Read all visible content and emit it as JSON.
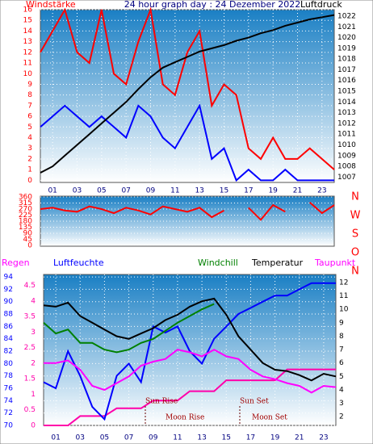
{
  "chart_data": [
    {
      "type": "line",
      "title": "24 hour graph day : 24 Dezember 2022",
      "y_label": "Windstärke",
      "y2_label": "Luftdruck",
      "x": [
        0,
        1,
        2,
        3,
        4,
        5,
        6,
        7,
        8,
        9,
        10,
        11,
        12,
        13,
        14,
        15,
        16,
        17,
        18,
        19,
        20,
        21,
        22,
        23,
        24
      ],
      "xlim": [
        0,
        24
      ],
      "xticks": [
        {
          "value": 1,
          "label": "01"
        },
        {
          "value": 3,
          "label": "03"
        },
        {
          "value": 5,
          "label": "05"
        },
        {
          "value": 7,
          "label": "07"
        },
        {
          "value": 9,
          "label": "09"
        },
        {
          "value": 11,
          "label": "11"
        },
        {
          "value": 13,
          "label": "13"
        },
        {
          "value": 15,
          "label": "15"
        },
        {
          "value": 17,
          "label": "17"
        },
        {
          "value": 19,
          "label": "19"
        },
        {
          "value": 21,
          "label": "21"
        },
        {
          "value": 23,
          "label": "23"
        }
      ],
      "ylim": [
        -0.2,
        16
      ],
      "yticks": [
        0,
        1,
        2,
        3,
        4,
        5,
        6,
        7,
        8,
        9,
        10,
        11,
        12,
        13,
        14,
        15,
        16
      ],
      "y2lim": [
        1006.5,
        1022.6
      ],
      "y2ticks": [
        1007,
        1008,
        1009,
        1010,
        1011,
        1012,
        1013,
        1014,
        1015,
        1016,
        1017,
        1018,
        1019,
        1020,
        1021,
        1022
      ],
      "series": [
        {
          "color": "#ff0000",
          "values": [
            12,
            14,
            16,
            12,
            11,
            16,
            10,
            9,
            13,
            16,
            9,
            8,
            12,
            14,
            7,
            9,
            8,
            3,
            2,
            4,
            2,
            2,
            3,
            2,
            1
          ]
        },
        {
          "color": "#0000ff",
          "values": [
            5,
            6,
            7,
            6,
            5,
            6,
            5,
            4,
            7,
            6,
            4,
            3,
            5,
            7,
            2,
            3,
            0,
            1,
            0,
            0,
            1,
            0,
            0,
            0,
            0
          ]
        },
        {
          "color": "#000000",
          "axis": "y2",
          "values": [
            1007.4,
            1008,
            1009,
            1010,
            1011,
            1012,
            1013,
            1014,
            1015.2,
            1016.3,
            1017.2,
            1017.7,
            1018.2,
            1018.7,
            1019,
            1019.3,
            1019.7,
            1020,
            1020.4,
            1020.7,
            1021.1,
            1021.4,
            1021.7,
            1021.9,
            1022.1
          ]
        }
      ]
    },
    {
      "type": "line",
      "x": [
        0,
        1,
        2,
        3,
        4,
        5,
        6,
        7,
        8,
        9,
        10,
        11,
        12,
        13,
        14,
        15,
        16,
        17,
        18,
        19,
        20,
        21,
        22,
        23,
        24
      ],
      "xlim": [
        0,
        24
      ],
      "ylim": [
        -6,
        366
      ],
      "yticks": [
        0,
        45,
        90,
        135,
        180,
        225,
        270,
        315,
        360
      ],
      "y2lim": [
        0,
        360
      ],
      "y2ticks": [
        {
          "value": 360,
          "label": "N"
        },
        {
          "value": 270,
          "label": "W"
        },
        {
          "value": 180,
          "label": "S"
        },
        {
          "value": 90,
          "label": "O"
        },
        {
          "value": 0,
          "label": "N"
        }
      ],
      "series": [
        {
          "color": "#ff0000",
          "values": [
            270,
            280,
            260,
            250,
            290,
            270,
            240,
            280,
            260,
            230,
            290,
            270,
            250,
            280,
            210,
            260,
            null,
            280,
            190,
            300,
            250,
            null,
            320,
            240,
            300
          ]
        }
      ]
    },
    {
      "type": "line",
      "x": [
        0,
        1,
        2,
        3,
        4,
        5,
        6,
        7,
        8,
        9,
        10,
        11,
        12,
        13,
        14,
        15,
        16,
        17,
        18,
        19,
        20,
        21,
        22,
        23,
        24
      ],
      "xlim": [
        0,
        24
      ],
      "xticks": [
        {
          "value": 1,
          "label": "01"
        },
        {
          "value": 3,
          "label": "03"
        },
        {
          "value": 5,
          "label": "05"
        },
        {
          "value": 7,
          "label": "07"
        },
        {
          "value": 9,
          "label": "09"
        },
        {
          "value": 11,
          "label": "11"
        },
        {
          "value": 13,
          "label": "13"
        },
        {
          "value": 15,
          "label": "15"
        },
        {
          "value": 17,
          "label": "17"
        },
        {
          "value": 19,
          "label": "19"
        },
        {
          "value": 21,
          "label": "21"
        },
        {
          "value": 23,
          "label": "23"
        }
      ],
      "ylim": [
        70,
        94.4
      ],
      "yticks": [
        70,
        72,
        74,
        76,
        78,
        80,
        82,
        84,
        86,
        88,
        90,
        92,
        94
      ],
      "y2lim": [
        1.35,
        12.6
      ],
      "y2ticks": [
        2,
        3,
        4,
        5,
        6,
        7,
        8,
        9,
        10,
        11,
        12
      ],
      "y3lim": [
        0,
        4.85
      ],
      "y3ticks": [
        0,
        0.5,
        1,
        1.5,
        2,
        2.5,
        3,
        3.5,
        4,
        4.5
      ],
      "annotations": [
        "Sun Rise",
        "Moon Rise",
        "Sun Set",
        "Moon Set"
      ],
      "series": [
        {
          "name": "Regen",
          "color": "#ff00aa",
          "axis": "y3",
          "values": [
            0,
            0,
            0,
            0.3,
            0.3,
            0.3,
            0.55,
            0.55,
            0.55,
            0.8,
            0.8,
            0.8,
            1.1,
            1.1,
            1.1,
            1.45,
            1.45,
            1.45,
            1.45,
            1.45,
            1.8,
            1.8,
            1.8,
            1.8,
            1.8
          ]
        },
        {
          "name": "Luftfeuchte",
          "color": "#0000ff",
          "values": [
            77,
            76,
            82,
            78,
            73,
            71,
            78,
            80,
            77,
            86,
            85,
            86,
            82,
            80,
            84,
            86,
            88,
            89,
            90,
            91,
            91,
            92,
            93,
            93,
            93
          ]
        },
        {
          "name": "Windchill",
          "color": "#008000",
          "axis": "y2",
          "values": [
            9.0,
            8.2,
            8.5,
            7.5,
            7.5,
            7.0,
            6.8,
            7.0,
            7.5,
            7.8,
            8.4,
            9.0,
            9.5,
            10.0,
            10.4,
            null,
            null,
            null,
            null,
            null,
            null,
            null,
            null,
            null,
            null
          ]
        },
        {
          "name": "Temperatur",
          "color": "#000000",
          "axis": "y2",
          "values": [
            10.3,
            10.2,
            10.5,
            9.5,
            9.0,
            8.5,
            8.0,
            7.8,
            8.2,
            8.6,
            9.2,
            9.6,
            10.2,
            10.6,
            10.8,
            9.6,
            8.0,
            7.0,
            6.0,
            5.5,
            5.4,
            5.1,
            4.7,
            5.2,
            5.0
          ]
        },
        {
          "name": "Taupunkt",
          "color": "#ff00ff",
          "axis": "y2",
          "values": [
            6.0,
            6.0,
            6.2,
            5.5,
            4.3,
            4.0,
            4.5,
            5.0,
            5.8,
            6.1,
            6.3,
            7.0,
            6.8,
            6.5,
            7.0,
            6.5,
            6.3,
            5.5,
            5.0,
            4.8,
            4.5,
            4.3,
            3.8,
            4.3,
            4.2
          ]
        }
      ]
    }
  ]
}
